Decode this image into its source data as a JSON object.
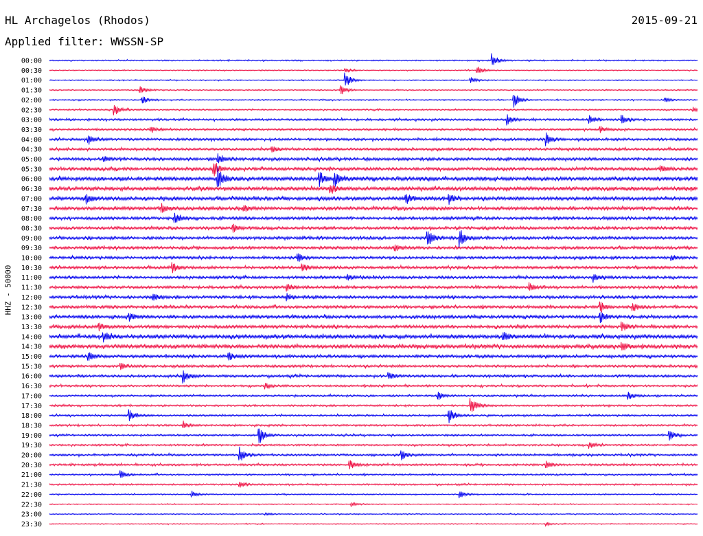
{
  "header": {
    "station": "HL Archagelos (Rhodos)",
    "filter": "Applied filter: WWSSN-SP",
    "date": "2015-09-21"
  },
  "chart_data": {
    "type": "line",
    "title": "HL Archagelos (Rhodos)",
    "subtitle": "Applied filter: WWSSN-SP",
    "date": "2015-09-21",
    "ylabel": "HHZ - 50000",
    "row_labels": [
      "00:00",
      "00:30",
      "01:00",
      "01:30",
      "02:00",
      "02:30",
      "03:00",
      "03:30",
      "04:00",
      "04:30",
      "05:00",
      "05:30",
      "06:00",
      "06:30",
      "07:00",
      "07:30",
      "08:00",
      "08:30",
      "09:00",
      "09:30",
      "10:00",
      "10:30",
      "11:00",
      "11:30",
      "12:00",
      "12:30",
      "13:00",
      "13:30",
      "14:00",
      "14:30",
      "15:00",
      "15:30",
      "16:00",
      "16:30",
      "17:00",
      "17:30",
      "18:00",
      "18:30",
      "19:00",
      "19:30",
      "20:00",
      "20:30",
      "21:00",
      "21:30",
      "22:00",
      "22:30",
      "23:00",
      "23:30"
    ],
    "series_colors": [
      "#0000ee",
      "#ee1144"
    ],
    "color_pattern": "alternating",
    "trace_minutes": 30,
    "noise_level": [
      0.6,
      0.5,
      0.5,
      0.6,
      0.6,
      0.7,
      1.0,
      1.0,
      1.2,
      1.2,
      1.4,
      1.5,
      1.8,
      1.8,
      1.7,
      1.6,
      1.4,
      1.4,
      1.4,
      1.4,
      1.3,
      1.3,
      1.3,
      1.3,
      1.4,
      1.4,
      1.5,
      1.5,
      1.8,
      1.8,
      1.4,
      1.2,
      1.2,
      1.0,
      0.9,
      0.9,
      0.9,
      0.9,
      0.9,
      0.9,
      1.0,
      1.0,
      0.8,
      0.8,
      0.6,
      0.5,
      0.5,
      0.5
    ],
    "events": [
      [
        0,
        20.5,
        9
      ],
      [
        1,
        19.8,
        6
      ],
      [
        1,
        13.7,
        3
      ],
      [
        2,
        19.5,
        4
      ],
      [
        2,
        13.7,
        10
      ],
      [
        3,
        4.2,
        5
      ],
      [
        3,
        13.5,
        6
      ],
      [
        4,
        4.3,
        5
      ],
      [
        4,
        21.5,
        10
      ],
      [
        4,
        28.5,
        3
      ],
      [
        5,
        3.0,
        8
      ],
      [
        5,
        29.8,
        3
      ],
      [
        6,
        21.2,
        6
      ],
      [
        6,
        25.0,
        5
      ],
      [
        6,
        26.5,
        5
      ],
      [
        7,
        4.7,
        4
      ],
      [
        7,
        25.5,
        4
      ],
      [
        8,
        1.8,
        6
      ],
      [
        8,
        23.0,
        8
      ],
      [
        9,
        10.3,
        4
      ],
      [
        10,
        2.5,
        4
      ],
      [
        10,
        7.8,
        6
      ],
      [
        11,
        7.6,
        10
      ],
      [
        11,
        28.3,
        5
      ],
      [
        12,
        7.8,
        14
      ],
      [
        12,
        12.5,
        9
      ],
      [
        12,
        13.2,
        9
      ],
      [
        13,
        13.0,
        6
      ],
      [
        14,
        1.7,
        6
      ],
      [
        14,
        16.5,
        7
      ],
      [
        14,
        18.5,
        6
      ],
      [
        15,
        5.2,
        6
      ],
      [
        15,
        9.0,
        5
      ],
      [
        16,
        5.8,
        7
      ],
      [
        17,
        8.5,
        5
      ],
      [
        18,
        17.5,
        12
      ],
      [
        18,
        19.0,
        11
      ],
      [
        19,
        16.0,
        4
      ],
      [
        20,
        11.5,
        6
      ],
      [
        20,
        28.8,
        4
      ],
      [
        21,
        5.7,
        6
      ],
      [
        21,
        11.7,
        6
      ],
      [
        22,
        13.8,
        4
      ],
      [
        22,
        25.2,
        5
      ],
      [
        23,
        11.0,
        5
      ],
      [
        23,
        22.2,
        5
      ],
      [
        24,
        4.8,
        5
      ],
      [
        24,
        11.0,
        4
      ],
      [
        25,
        25.5,
        7
      ],
      [
        25,
        27.0,
        6
      ],
      [
        26,
        3.7,
        5
      ],
      [
        26,
        25.5,
        7
      ],
      [
        27,
        2.3,
        5
      ],
      [
        27,
        26.5,
        6
      ],
      [
        28,
        2.5,
        7
      ],
      [
        28,
        21.0,
        7
      ],
      [
        29,
        26.5,
        6
      ],
      [
        30,
        1.8,
        6
      ],
      [
        30,
        8.3,
        6
      ],
      [
        31,
        3.3,
        4
      ],
      [
        32,
        6.2,
        9
      ],
      [
        32,
        15.7,
        5
      ],
      [
        33,
        10.0,
        4
      ],
      [
        34,
        18.0,
        5
      ],
      [
        34,
        26.8,
        5
      ],
      [
        35,
        19.5,
        12
      ],
      [
        36,
        3.7,
        7
      ],
      [
        36,
        18.5,
        10
      ],
      [
        37,
        6.2,
        5
      ],
      [
        38,
        9.7,
        12
      ],
      [
        38,
        28.7,
        7
      ],
      [
        39,
        25.0,
        4
      ],
      [
        40,
        8.8,
        9
      ],
      [
        40,
        16.3,
        6
      ],
      [
        41,
        13.9,
        7
      ],
      [
        41,
        23.0,
        5
      ],
      [
        42,
        3.3,
        5
      ],
      [
        43,
        8.8,
        4
      ],
      [
        44,
        6.6,
        4
      ],
      [
        44,
        19.0,
        5
      ],
      [
        45,
        14.0,
        3
      ],
      [
        46,
        10.0,
        2
      ],
      [
        47,
        23.0,
        2
      ]
    ]
  }
}
